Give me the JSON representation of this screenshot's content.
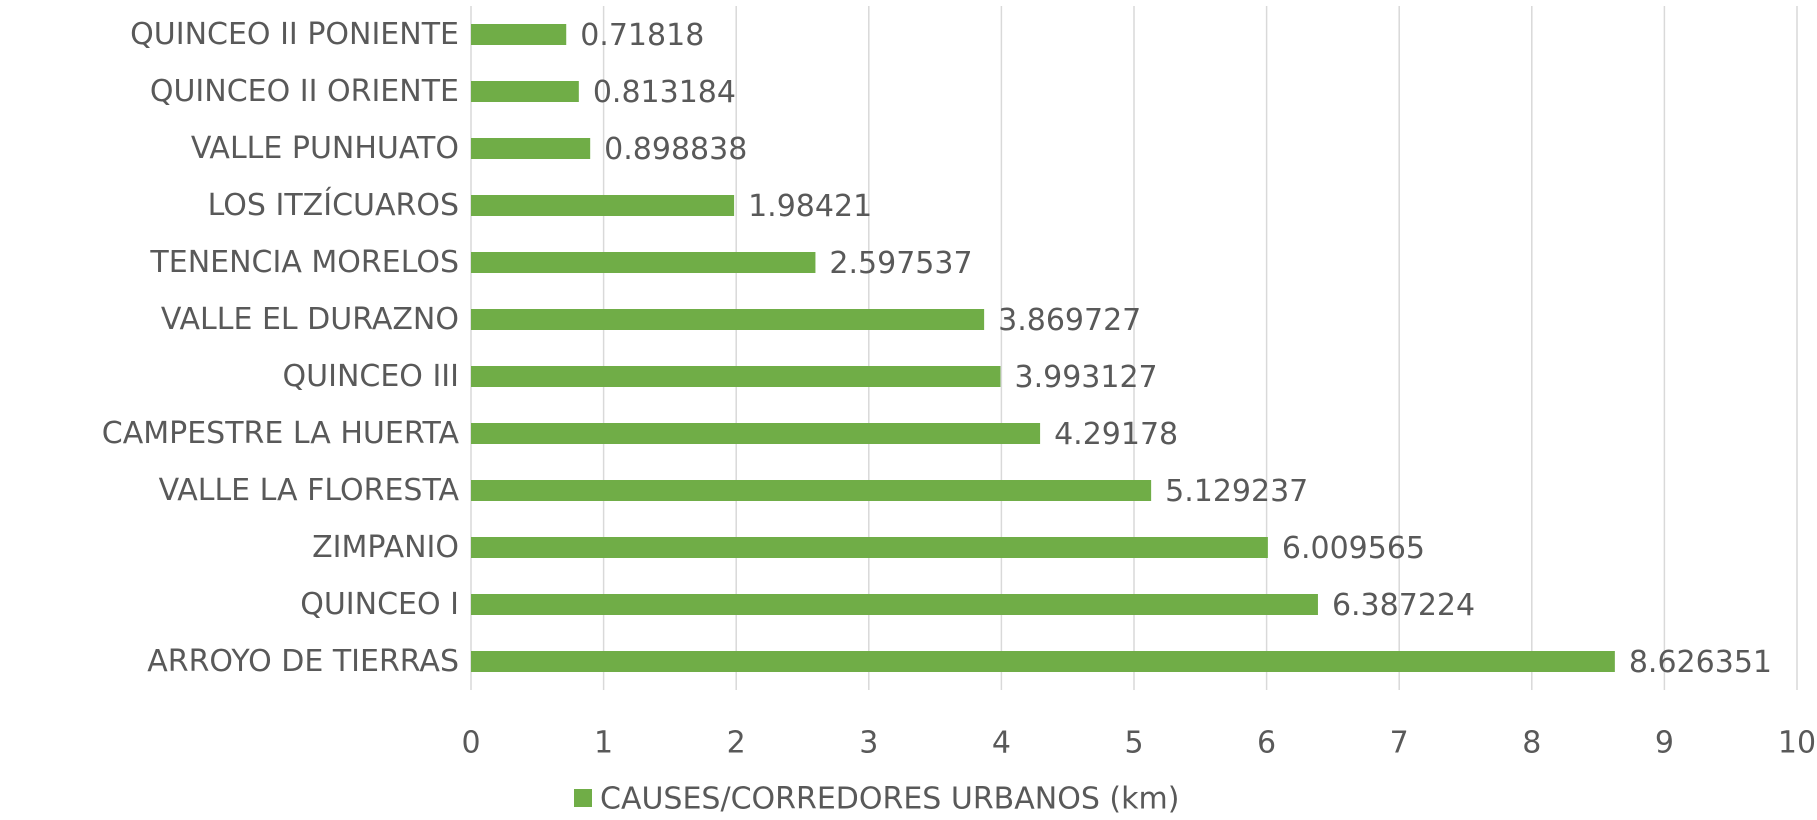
{
  "chart_data": {
    "type": "bar",
    "orientation": "horizontal",
    "categories": [
      "QUINCEO II PONIENTE",
      "QUINCEO II ORIENTE",
      "VALLE PUNHUATO",
      "LOS ITZÍCUAROS",
      "TENENCIA MORELOS",
      "VALLE EL DURAZNO",
      "QUINCEO III",
      "CAMPESTRE LA HUERTA",
      "VALLE LA FLORESTA",
      "ZIMPANIO",
      "QUINCEO I",
      "ARROYO DE TIERRAS"
    ],
    "series": [
      {
        "name": "CAUSES/CORREDORES URBANOS (km)",
        "color": "#70ad47",
        "values": [
          0.71818,
          0.813184,
          0.898838,
          1.98421,
          2.597537,
          3.869727,
          3.993127,
          4.29178,
          5.129237,
          6.009565,
          6.387224,
          8.626351
        ]
      }
    ],
    "xlim": [
      0,
      10
    ],
    "xticks": [
      0,
      1,
      2,
      3,
      4,
      5,
      6,
      7,
      8,
      9,
      10
    ],
    "grid": true,
    "legend": "bottom"
  }
}
